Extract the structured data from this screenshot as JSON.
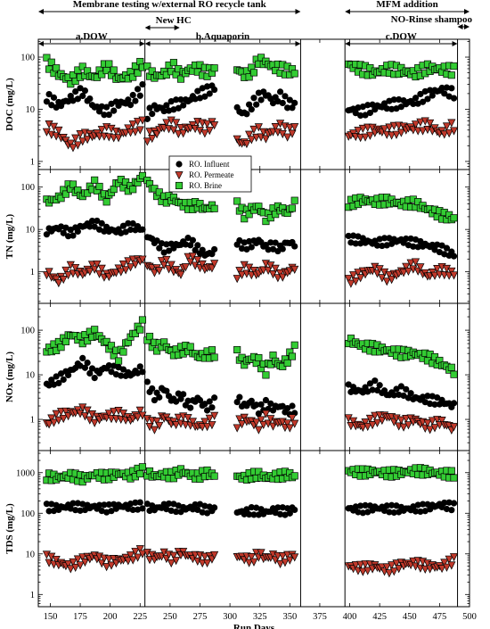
{
  "chart_data": {
    "type": "scatter",
    "x_axis": {
      "label": "Run Days",
      "range": [
        140,
        500
      ],
      "ticks": [
        150,
        175,
        200,
        225,
        250,
        275,
        300,
        325,
        350,
        375,
        400,
        425,
        450,
        475,
        500
      ]
    },
    "y_scale": "log",
    "panels": [
      {
        "id": "doc",
        "ylabel": "DOC (mg/L)",
        "ylim": [
          0.7,
          220
        ],
        "ticks": [
          1,
          10,
          100
        ]
      },
      {
        "id": "tn",
        "ylabel": "TN (mg/L)",
        "ylim": [
          0.18,
          260
        ],
        "ticks": [
          1,
          10,
          100
        ]
      },
      {
        "id": "nox",
        "ylabel": "NOx (mg/L)",
        "ylim": [
          0.2,
          400
        ],
        "ticks": [
          1,
          10,
          100
        ]
      },
      {
        "id": "tds",
        "ylabel": "TDS (mg/L)",
        "ylim": [
          0.5,
          3500
        ],
        "ticks": [
          1,
          10,
          100,
          1000
        ]
      }
    ],
    "series": [
      {
        "name": "RO. Influent",
        "marker": "circle",
        "color": "#000000"
      },
      {
        "name": "RO. Permeate",
        "marker": "triangle-down",
        "color": "#c0392b"
      },
      {
        "name": "RO. Brine",
        "marker": "square",
        "color": "#33cc33"
      }
    ],
    "legend_location": "upper-left of TN panel",
    "phase_lines_x": [
      229,
      359,
      396,
      490
    ],
    "annotations": [
      {
        "text": "Membrane testing w/external RO recycle tank",
        "from": 140,
        "to": 359
      },
      {
        "text": "New HC",
        "from": 229,
        "to": 258
      },
      {
        "text": "a.DOW",
        "from": 140,
        "to": 229
      },
      {
        "text": "b.Aquaporin",
        "from": 229,
        "to": 359
      },
      {
        "text": "MFM addition",
        "from": 396,
        "to": 500
      },
      {
        "text": "NO-Rinse shampoo",
        "from": 490,
        "to": 500
      },
      {
        "text": "c.DOW",
        "from": 396,
        "to": 490
      }
    ],
    "segments": [
      {
        "start": 147,
        "end": 227,
        "step": 2
      },
      {
        "start": 231,
        "end": 288,
        "step": 2
      },
      {
        "start": 306,
        "end": 354,
        "step": 2
      },
      {
        "start": 399,
        "end": 487,
        "step": 2
      }
    ],
    "data": {
      "doc": {
        "RO. Influent": [
          [
            17,
            12,
            16,
            22,
            11,
            9,
            13,
            14,
            25
          ],
          [
            8,
            11,
            10,
            12,
            13,
            15,
            19,
            22,
            26
          ],
          [
            10,
            8,
            12,
            17,
            20,
            14,
            18,
            13,
            12
          ],
          [
            10,
            9,
            11,
            12,
            13,
            14,
            19,
            24,
            20
          ]
        ],
        "RO. Permeate": [
          [
            4.5,
            3.5,
            2,
            3,
            3.2,
            3.8,
            3.2,
            4.2,
            5.2
          ],
          [
            3,
            3.5,
            4.8,
            5.2,
            3.8,
            4.5,
            5,
            4.2,
            5.5
          ],
          [
            2.5,
            2.2,
            3.2,
            3.8,
            3,
            4,
            4.5,
            3.6,
            4.2
          ],
          [
            3.2,
            3.5,
            4,
            3.8,
            4.2,
            4.5,
            5,
            3.5,
            4.8
          ]
        ],
        "RO. Brine": [
          [
            80,
            48,
            35,
            55,
            40,
            68,
            38,
            45,
            75
          ],
          [
            55,
            42,
            48,
            68,
            44,
            58,
            62,
            50,
            58
          ],
          [
            60,
            45,
            52,
            88,
            78,
            65,
            60,
            55,
            52
          ],
          [
            72,
            58,
            50,
            60,
            55,
            48,
            62,
            58,
            55
          ]
        ]
      },
      "tn": {
        "RO. Influent": [
          [
            9,
            11,
            8,
            12,
            14,
            10,
            9,
            12,
            10
          ],
          [
            7,
            5,
            3.5,
            4,
            4.5,
            5.5,
            3.5,
            2.5,
            3
          ],
          [
            5,
            4,
            4.5,
            5.5,
            3.8,
            4.2,
            3.5,
            5,
            4.5
          ],
          [
            6,
            5.5,
            4.8,
            5.2,
            5.5,
            4.8,
            4.2,
            3.5,
            2.5
          ]
        ],
        "RO. Permeate": [
          [
            1,
            0.6,
            1.2,
            0.9,
            1.4,
            0.8,
            1.1,
            1.6,
            2
          ],
          [
            1.5,
            1,
            1.8,
            1.2,
            0.9,
            2.2,
            1.6,
            1.2,
            1.4
          ],
          [
            0.8,
            1.2,
            1,
            0.9,
            1.4,
            1.1,
            0.8,
            1,
            1.3
          ],
          [
            0.6,
            0.9,
            1.2,
            0.7,
            1,
            1.5,
            0.8,
            1.1,
            0.9
          ]
        ],
        "RO. Brine": [
          [
            45,
            55,
            110,
            60,
            120,
            50,
            140,
            90,
            180
          ],
          [
            140,
            75,
            50,
            55,
            40,
            35,
            38,
            30,
            36
          ],
          [
            40,
            22,
            30,
            35,
            18,
            26,
            32,
            24,
            42
          ],
          [
            40,
            50,
            45,
            48,
            40,
            42,
            30,
            22,
            18
          ]
        ]
      },
      "nox": {
        "RO. Influent": [
          [
            6,
            8,
            12,
            20,
            10,
            15,
            12,
            10,
            14
          ],
          [
            6,
            3,
            5,
            2.5,
            3.5,
            2,
            3,
            1.8,
            2.5
          ],
          [
            3,
            2,
            2.5,
            1.6,
            2.2,
            1.8,
            2,
            1.5,
            1.7
          ],
          [
            5,
            4.2,
            6,
            3.5,
            4.5,
            3,
            2.8,
            2.5,
            2
          ]
        ],
        "RO. Permeate": [
          [
            0.8,
            1.2,
            1.4,
            1.6,
            1,
            1.2,
            1.3,
            1,
            1.5
          ],
          [
            0.9,
            0.7,
            1.2,
            0.8,
            1,
            0.9,
            0.7,
            0.8,
            1
          ],
          [
            0.8,
            1,
            0.9,
            0.7,
            1.1,
            0.8,
            0.9,
            0.7,
            1
          ],
          [
            0.9,
            0.7,
            1,
            1.2,
            0.8,
            1,
            0.7,
            0.9,
            0.6
          ]
        ],
        "RO. Brine": [
          [
            35,
            45,
            80,
            60,
            90,
            50,
            25,
            70,
            140
          ],
          [
            70,
            40,
            50,
            30,
            35,
            40,
            25,
            28,
            30
          ],
          [
            30,
            18,
            24,
            20,
            12,
            25,
            15,
            22,
            38
          ],
          [
            60,
            45,
            40,
            35,
            30,
            30,
            25,
            18,
            12
          ]
        ]
      },
      "tds": {
        "RO. Influent": [
          [
            140,
            135,
            150,
            140,
            145,
            130,
            150,
            145,
            155
          ],
          [
            140,
            130,
            150,
            140,
            125,
            135,
            145,
            120,
            130
          ],
          [
            110,
            105,
            115,
            110,
            105,
            120,
            115,
            110,
            130
          ],
          [
            130,
            125,
            135,
            130,
            125,
            130,
            140,
            160,
            145
          ]
        ],
        "RO. Permeate": [
          [
            8,
            6,
            5,
            7,
            9,
            6,
            7,
            8,
            12
          ],
          [
            9,
            8,
            10,
            7,
            11,
            9,
            8,
            7,
            9
          ],
          [
            9,
            8,
            7,
            10,
            8,
            9,
            7,
            8,
            9
          ],
          [
            5,
            4.5,
            5,
            4,
            5.5,
            6,
            5,
            4.8,
            7
          ]
        ],
        "RO. Brine": [
          [
            800,
            750,
            850,
            700,
            900,
            800,
            950,
            850,
            1200
          ],
          [
            1000,
            800,
            900,
            850,
            1100,
            900,
            800,
            1000,
            850
          ],
          [
            800,
            750,
            850,
            900,
            750,
            800,
            850,
            900,
            800
          ],
          [
            1100,
            1000,
            1050,
            950,
            1000,
            1100,
            1050,
            950,
            900
          ]
        ]
      }
    }
  }
}
